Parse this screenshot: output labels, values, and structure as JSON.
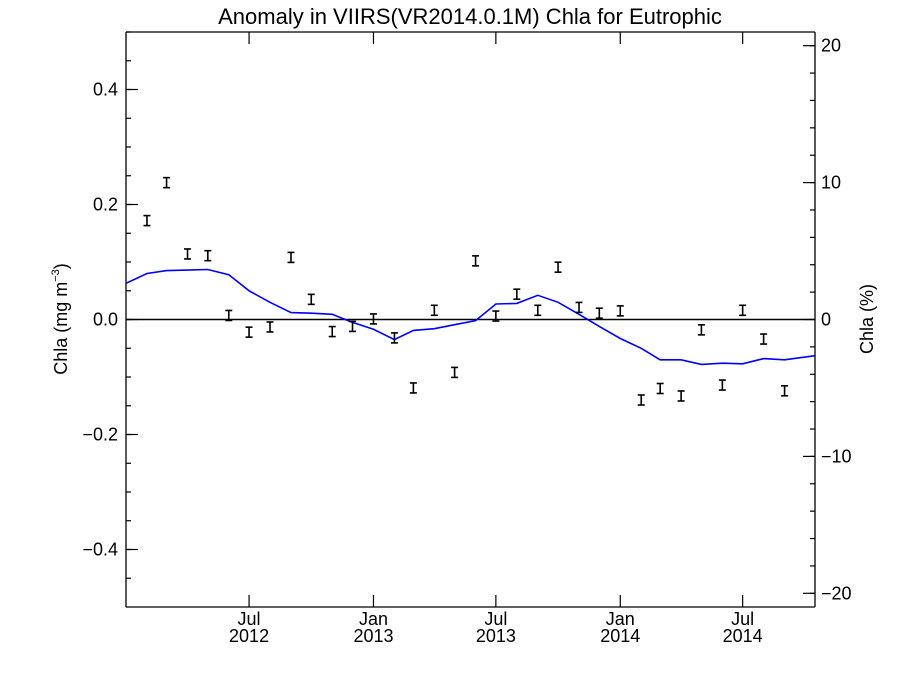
{
  "chart_data": {
    "type": "scatter",
    "title": "Anomaly in VIIRS(VR2014.0.1M) Chla for Eutrophic",
    "ylabel_left_text": "Chla (mg m",
    "ylabel_left_sup": "−3",
    "ylabel_left_close": ")",
    "ylabel_right": "Chla (%)",
    "xlim": [
      "2012-01-01",
      "2014-10-16"
    ],
    "ylim_left": [
      -0.5,
      0.5
    ],
    "ylim_right": [
      -21,
      21
    ],
    "grid": false,
    "left_ticks": [
      {
        "value": 0.4,
        "label": "0.4"
      },
      {
        "value": 0.2,
        "label": "0.2"
      },
      {
        "value": 0.0,
        "label": "0.0"
      },
      {
        "value": -0.2,
        "label": "−0.2"
      },
      {
        "value": -0.4,
        "label": "−0.4"
      }
    ],
    "right_ticks": [
      {
        "value": 20,
        "label": "20"
      },
      {
        "value": 10,
        "label": "10"
      },
      {
        "value": 0,
        "label": "0"
      },
      {
        "value": -10,
        "label": "−10"
      },
      {
        "value": -20,
        "label": "−20"
      }
    ],
    "x_ticks": [
      {
        "date": "2012-07-01",
        "month": "Jul",
        "year": "2012"
      },
      {
        "date": "2013-01-01",
        "month": "Jan",
        "year": "2013"
      },
      {
        "date": "2013-07-01",
        "month": "Jul",
        "year": "2013"
      },
      {
        "date": "2014-01-01",
        "month": "Jan",
        "year": "2014"
      },
      {
        "date": "2014-07-01",
        "month": "Jul",
        "year": "2014"
      }
    ],
    "zero_line": true,
    "series": [
      {
        "type": "errorbar",
        "color": "#000000",
        "points": [
          {
            "x": "2012-02-01",
            "y": 0.172
          },
          {
            "x": "2012-03-01",
            "y": 0.238
          },
          {
            "x": "2012-04-01",
            "y": 0.114
          },
          {
            "x": "2012-05-01",
            "y": 0.111
          },
          {
            "x": "2012-06-01",
            "y": 0.007
          },
          {
            "x": "2012-07-01",
            "y": -0.022
          },
          {
            "x": "2012-08-01",
            "y": -0.013
          },
          {
            "x": "2012-09-01",
            "y": 0.108
          },
          {
            "x": "2012-10-01",
            "y": 0.035
          },
          {
            "x": "2012-11-01",
            "y": -0.021
          },
          {
            "x": "2012-12-01",
            "y": -0.012
          },
          {
            "x": "2013-01-01",
            "y": 0.001
          },
          {
            "x": "2013-02-01",
            "y": -0.032
          },
          {
            "x": "2013-03-01",
            "y": -0.119
          },
          {
            "x": "2013-04-01",
            "y": 0.016
          },
          {
            "x": "2013-05-01",
            "y": -0.092
          },
          {
            "x": "2013-06-01",
            "y": 0.102
          },
          {
            "x": "2013-07-01",
            "y": 0.006
          },
          {
            "x": "2013-08-01",
            "y": 0.044
          },
          {
            "x": "2013-09-01",
            "y": 0.016
          },
          {
            "x": "2013-10-01",
            "y": 0.091
          },
          {
            "x": "2013-11-01",
            "y": 0.021
          },
          {
            "x": "2013-12-01",
            "y": 0.011
          },
          {
            "x": "2014-01-01",
            "y": 0.015
          },
          {
            "x": "2014-02-01",
            "y": -0.14
          },
          {
            "x": "2014-03-01",
            "y": -0.12
          },
          {
            "x": "2014-04-01",
            "y": -0.133
          },
          {
            "x": "2014-05-01",
            "y": -0.018
          },
          {
            "x": "2014-06-01",
            "y": -0.114
          },
          {
            "x": "2014-07-01",
            "y": 0.016
          },
          {
            "x": "2014-08-01",
            "y": -0.034
          },
          {
            "x": "2014-09-01",
            "y": -0.124
          }
        ]
      },
      {
        "type": "line",
        "color": "#0000ff",
        "points": [
          {
            "x": "2012-01-01",
            "y": 0.063
          },
          {
            "x": "2012-02-01",
            "y": 0.08
          },
          {
            "x": "2012-03-01",
            "y": 0.085
          },
          {
            "x": "2012-04-01",
            "y": 0.086
          },
          {
            "x": "2012-05-01",
            "y": 0.087
          },
          {
            "x": "2012-06-01",
            "y": 0.078
          },
          {
            "x": "2012-07-01",
            "y": 0.05
          },
          {
            "x": "2012-08-01",
            "y": 0.03
          },
          {
            "x": "2012-09-01",
            "y": 0.012
          },
          {
            "x": "2012-10-01",
            "y": 0.011
          },
          {
            "x": "2012-11-01",
            "y": 0.009
          },
          {
            "x": "2012-12-01",
            "y": -0.005
          },
          {
            "x": "2013-01-01",
            "y": -0.017
          },
          {
            "x": "2013-02-01",
            "y": -0.035
          },
          {
            "x": "2013-03-01",
            "y": -0.019
          },
          {
            "x": "2013-04-01",
            "y": -0.016
          },
          {
            "x": "2013-05-01",
            "y": -0.009
          },
          {
            "x": "2013-06-01",
            "y": -0.002
          },
          {
            "x": "2013-07-01",
            "y": 0.027
          },
          {
            "x": "2013-08-01",
            "y": 0.028
          },
          {
            "x": "2013-09-01",
            "y": 0.042
          },
          {
            "x": "2013-10-01",
            "y": 0.03
          },
          {
            "x": "2013-11-01",
            "y": 0.009
          },
          {
            "x": "2013-12-01",
            "y": -0.012
          },
          {
            "x": "2014-01-01",
            "y": -0.033
          },
          {
            "x": "2014-02-01",
            "y": -0.05
          },
          {
            "x": "2014-03-01",
            "y": -0.07
          },
          {
            "x": "2014-04-01",
            "y": -0.07
          },
          {
            "x": "2014-05-01",
            "y": -0.078
          },
          {
            "x": "2014-06-01",
            "y": -0.076
          },
          {
            "x": "2014-07-01",
            "y": -0.077
          },
          {
            "x": "2014-08-01",
            "y": -0.068
          },
          {
            "x": "2014-09-01",
            "y": -0.07
          },
          {
            "x": "2014-10-16",
            "y": -0.063
          }
        ]
      }
    ]
  }
}
